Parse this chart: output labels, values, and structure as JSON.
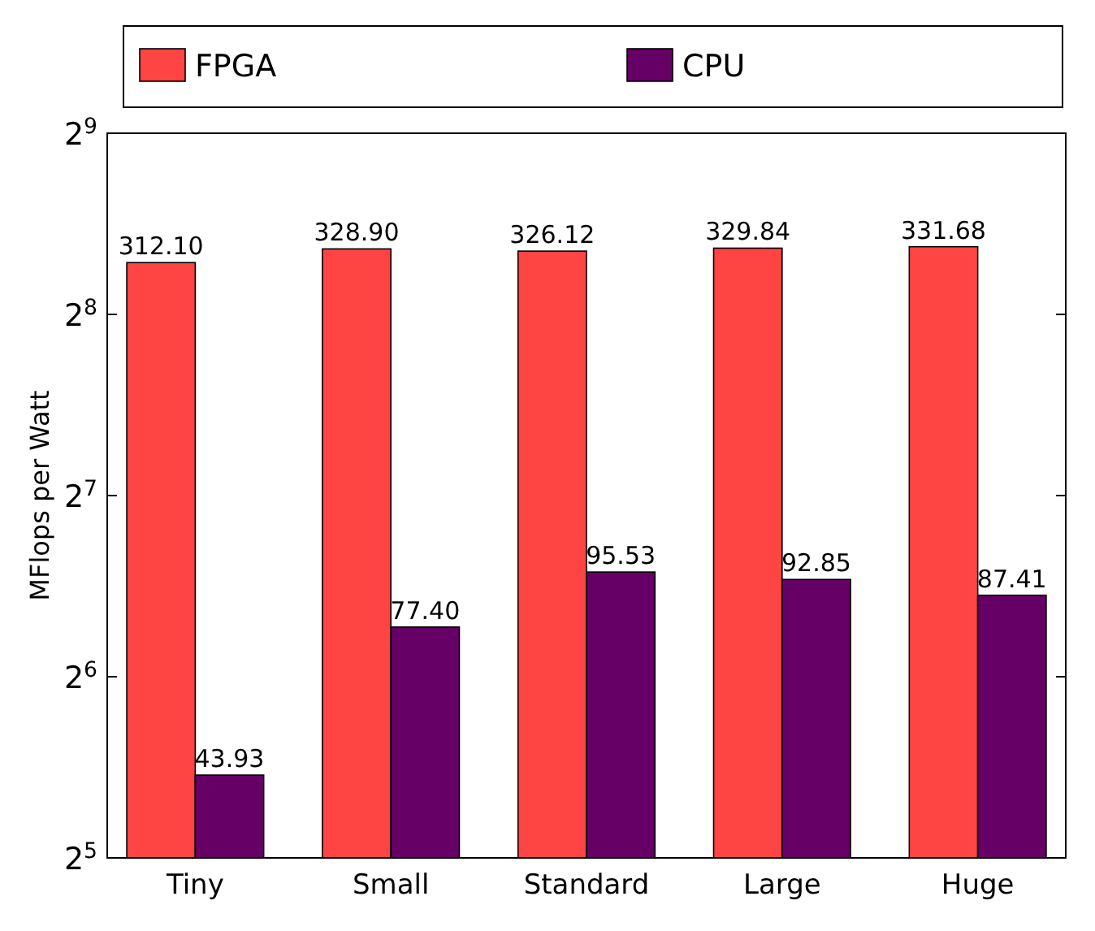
{
  "chart_data": {
    "type": "bar",
    "ylabel": "MFlops per Watt",
    "categories": [
      "Tiny",
      "Small",
      "Standard",
      "Large",
      "Huge"
    ],
    "series": [
      {
        "name": "FPGA",
        "color": "#ff4444",
        "values": [
          312.1,
          328.9,
          326.12,
          329.84,
          331.68
        ],
        "value_labels": [
          "312.10",
          "328.90",
          "326.12",
          "329.84",
          "331.68"
        ]
      },
      {
        "name": "CPU",
        "color": "#660066",
        "values": [
          43.93,
          77.4,
          95.53,
          92.85,
          87.41
        ],
        "value_labels": [
          "43.93",
          "77.40",
          "95.53",
          "92.85",
          "87.41"
        ]
      }
    ],
    "log": true,
    "ylim": [
      32,
      512
    ],
    "yticks": [
      {
        "value": 32,
        "label": "2$^{5}$"
      },
      {
        "value": 64,
        "label": "2$^{6}$"
      },
      {
        "value": 128,
        "label": "2$^{7}$"
      },
      {
        "value": 256,
        "label": "2$^{8}$"
      },
      {
        "value": 512,
        "label": "2$^{9}$"
      }
    ],
    "legend": "top"
  }
}
